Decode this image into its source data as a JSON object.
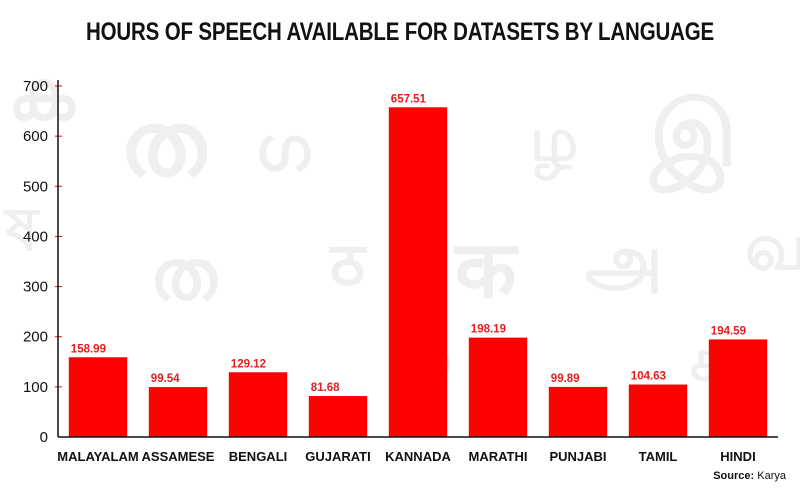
{
  "chart_data": {
    "type": "bar",
    "title": "HOURS OF SPEECH AVAILABLE FOR DATASETS BY LANGUAGE",
    "categories": [
      "MALAYALAM",
      "ASSAMESE",
      "BENGALI",
      "GUJARATI",
      "KANNADA",
      "MARATHI",
      "PUNJABI",
      "TAMIL",
      "HINDI"
    ],
    "values": [
      158.99,
      99.54,
      129.12,
      81.68,
      657.51,
      198.19,
      99.89,
      104.63,
      194.59
    ],
    "data_labels": [
      "158.99",
      "99.54",
      "129.12",
      "81.68",
      "657.51",
      "198.19",
      "99.89",
      "104.63",
      "194.59"
    ],
    "yticks": [
      0,
      100,
      200,
      300,
      400,
      500,
      600,
      700
    ],
    "ylim": [
      0,
      700
    ],
    "xlabel": "",
    "ylabel": "",
    "grid": false,
    "legend": "none",
    "bar_color": "#ff0000",
    "label_color": "#e41e1e"
  },
  "source": {
    "label": "Source:",
    "value": "Karya"
  },
  "background_glyphs": [
    "ക",
    "ത",
    "ഗ",
    "ழ",
    "இ",
    "ത",
    "ठ",
    "क",
    "அ",
    "வ",
    "ச",
    "ষ",
    "ఖ"
  ]
}
